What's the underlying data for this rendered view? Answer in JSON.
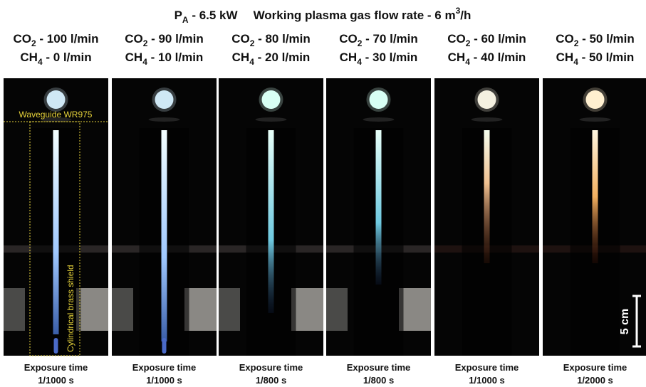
{
  "header": {
    "power_symbol": "P",
    "power_subscript": "A",
    "power": " - 6.5 kW",
    "flow": "Working plasma gas flow rate - 6 m",
    "flow_superscript": "3",
    "flow_unit": "/h"
  },
  "gases": [
    {
      "symbol": "CO",
      "subscript": "2"
    },
    {
      "symbol": "CH",
      "subscript": "4"
    }
  ],
  "panels": [
    {
      "co2_flow": " - 100 l/min",
      "ch4_flow": " - 0 l/min",
      "exposure_label": "Exposure time",
      "exposure": "1/1000 s"
    },
    {
      "co2_flow": " - 90 l/min",
      "ch4_flow": " - 10 l/min",
      "exposure_label": "Exposure time",
      "exposure": "1/1000 s"
    },
    {
      "co2_flow": " - 80 l/min",
      "ch4_flow": " - 20 l/min",
      "exposure_label": "Exposure time",
      "exposure": "1/800 s"
    },
    {
      "co2_flow": " - 70 l/min",
      "ch4_flow": " - 30 l/min",
      "exposure_label": "Exposure time",
      "exposure": "1/800 s"
    },
    {
      "co2_flow": " - 60 l/min",
      "ch4_flow": " - 40 l/min",
      "exposure_label": "Exposure time",
      "exposure": "1/1000 s"
    },
    {
      "co2_flow": " - 50 l/min",
      "ch4_flow": " - 50 l/min",
      "exposure_label": "Exposure time",
      "exposure": "1/2000 s"
    }
  ],
  "annotations": {
    "waveguide": "Waveguide WR975",
    "shield": "Cylindrical brass shield",
    "scale": "5 cm"
  }
}
